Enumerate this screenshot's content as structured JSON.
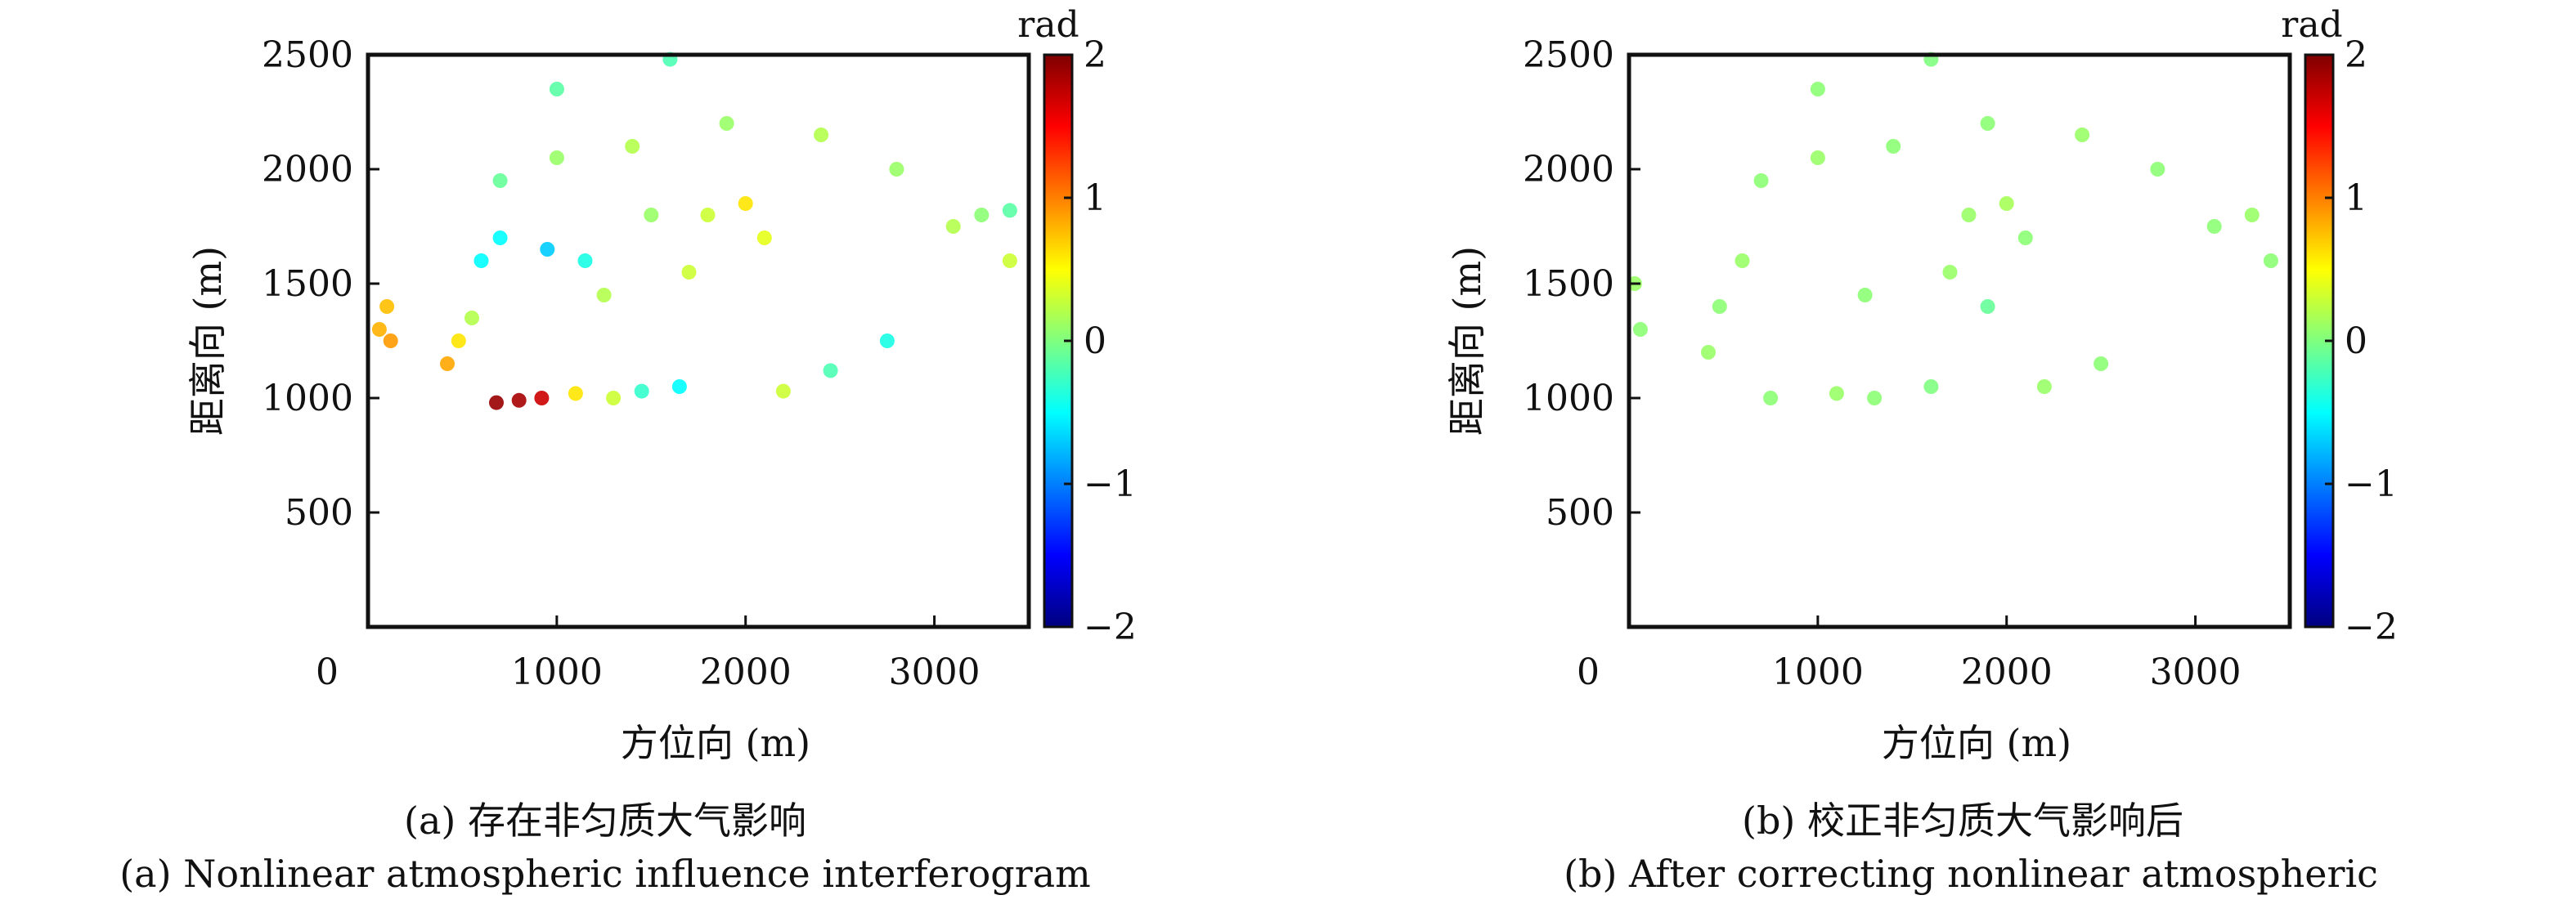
{
  "chart_data": [
    {
      "type": "scatter",
      "panel_label": "(a)",
      "caption_zh": "(a) 存在非匀质大气影响",
      "caption_en": "(a) Nonlinear atmospheric influence interferogram",
      "xlabel": "方位向 (m)",
      "ylabel": "距离向 (m)",
      "xlim": [
        0,
        3500
      ],
      "ylim": [
        0,
        2500
      ],
      "xticks": [
        0,
        1000,
        2000,
        3000
      ],
      "yticks": [
        500,
        1000,
        1500,
        2000,
        2500
      ],
      "colorbar": {
        "label": "rad",
        "range": [
          -2,
          2
        ],
        "ticks": [
          -2,
          -1,
          0,
          1,
          2
        ],
        "colormap": "jet"
      },
      "grid": false,
      "points": [
        {
          "x": 60,
          "y": 1300,
          "v": 0.8
        },
        {
          "x": 100,
          "y": 1400,
          "v": 0.75
        },
        {
          "x": 120,
          "y": 1250,
          "v": 0.9
        },
        {
          "x": 420,
          "y": 1150,
          "v": 0.85
        },
        {
          "x": 480,
          "y": 1250,
          "v": 0.6
        },
        {
          "x": 550,
          "y": 1350,
          "v": 0.2
        },
        {
          "x": 680,
          "y": 980,
          "v": 1.9
        },
        {
          "x": 800,
          "y": 990,
          "v": 1.85
        },
        {
          "x": 920,
          "y": 1000,
          "v": 1.7
        },
        {
          "x": 1100,
          "y": 1020,
          "v": 0.6
        },
        {
          "x": 1300,
          "y": 1000,
          "v": 0.3
        },
        {
          "x": 1450,
          "y": 1030,
          "v": -0.3
        },
        {
          "x": 1650,
          "y": 1050,
          "v": -0.5
        },
        {
          "x": 2200,
          "y": 1030,
          "v": 0.3
        },
        {
          "x": 2450,
          "y": 1120,
          "v": -0.2
        },
        {
          "x": 2750,
          "y": 1250,
          "v": -0.4
        },
        {
          "x": 600,
          "y": 1600,
          "v": -0.5
        },
        {
          "x": 700,
          "y": 1700,
          "v": -0.5
        },
        {
          "x": 950,
          "y": 1650,
          "v": -0.7
        },
        {
          "x": 1150,
          "y": 1600,
          "v": -0.4
        },
        {
          "x": 700,
          "y": 1950,
          "v": -0.1
        },
        {
          "x": 1000,
          "y": 2050,
          "v": 0.1
        },
        {
          "x": 1400,
          "y": 2100,
          "v": 0.2
        },
        {
          "x": 1500,
          "y": 1800,
          "v": 0.1
        },
        {
          "x": 1800,
          "y": 1800,
          "v": 0.3
        },
        {
          "x": 2000,
          "y": 1850,
          "v": 0.6
        },
        {
          "x": 2100,
          "y": 1700,
          "v": 0.4
        },
        {
          "x": 1900,
          "y": 2200,
          "v": 0.1
        },
        {
          "x": 2400,
          "y": 2150,
          "v": 0.2
        },
        {
          "x": 2800,
          "y": 2000,
          "v": 0.1
        },
        {
          "x": 3100,
          "y": 1750,
          "v": 0.2
        },
        {
          "x": 3250,
          "y": 1800,
          "v": 0.05
        },
        {
          "x": 3400,
          "y": 1820,
          "v": -0.15
        },
        {
          "x": 3400,
          "y": 1600,
          "v": 0.3
        },
        {
          "x": 1000,
          "y": 2350,
          "v": -0.15
        },
        {
          "x": 1600,
          "y": 2480,
          "v": -0.2
        },
        {
          "x": 1700,
          "y": 1550,
          "v": 0.3
        },
        {
          "x": 1250,
          "y": 1450,
          "v": 0.2
        }
      ]
    },
    {
      "type": "scatter",
      "panel_label": "(b)",
      "caption_zh": "(b) 校正非匀质大气影响后",
      "caption_en": "(b)  After correcting nonlinear atmospheric",
      "xlabel": "方位向 (m)",
      "ylabel": "距离向 (m)",
      "xlim": [
        0,
        3500
      ],
      "ylim": [
        0,
        2500
      ],
      "xticks": [
        0,
        1000,
        2000,
        3000
      ],
      "yticks": [
        500,
        1000,
        1500,
        2000,
        2500
      ],
      "colorbar": {
        "label": "rad",
        "range": [
          -2,
          2
        ],
        "ticks": [
          -2,
          -1,
          0,
          1,
          2
        ],
        "colormap": "jet"
      },
      "grid": false,
      "points": [
        {
          "x": 30,
          "y": 1500,
          "v": 0.1
        },
        {
          "x": 60,
          "y": 1300,
          "v": 0.05
        },
        {
          "x": 420,
          "y": 1200,
          "v": 0.1
        },
        {
          "x": 480,
          "y": 1400,
          "v": 0.05
        },
        {
          "x": 600,
          "y": 1600,
          "v": 0.1
        },
        {
          "x": 750,
          "y": 1000,
          "v": 0.05
        },
        {
          "x": 1100,
          "y": 1020,
          "v": 0.1
        },
        {
          "x": 1300,
          "y": 1000,
          "v": 0.05
        },
        {
          "x": 1600,
          "y": 1050,
          "v": 0.0
        },
        {
          "x": 2200,
          "y": 1050,
          "v": 0.1
        },
        {
          "x": 2500,
          "y": 1150,
          "v": 0.05
        },
        {
          "x": 700,
          "y": 1950,
          "v": 0.05
        },
        {
          "x": 1000,
          "y": 2050,
          "v": 0.1
        },
        {
          "x": 1400,
          "y": 2100,
          "v": 0.05
        },
        {
          "x": 1800,
          "y": 1800,
          "v": 0.1
        },
        {
          "x": 2000,
          "y": 1850,
          "v": 0.15
        },
        {
          "x": 2100,
          "y": 1700,
          "v": 0.05
        },
        {
          "x": 1900,
          "y": 2200,
          "v": 0.05
        },
        {
          "x": 2400,
          "y": 2150,
          "v": 0.1
        },
        {
          "x": 2800,
          "y": 2000,
          "v": 0.05
        },
        {
          "x": 3100,
          "y": 1750,
          "v": 0.05
        },
        {
          "x": 3300,
          "y": 1800,
          "v": 0.1
        },
        {
          "x": 1000,
          "y": 2350,
          "v": 0.05
        },
        {
          "x": 1600,
          "y": 2480,
          "v": 0.0
        },
        {
          "x": 1700,
          "y": 1550,
          "v": 0.1
        },
        {
          "x": 1250,
          "y": 1450,
          "v": 0.05
        },
        {
          "x": 3400,
          "y": 1600,
          "v": 0.05
        },
        {
          "x": 1900,
          "y": 1400,
          "v": -0.1
        }
      ]
    }
  ]
}
